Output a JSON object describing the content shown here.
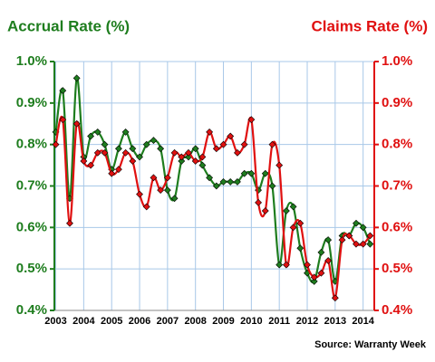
{
  "chart_data": {
    "type": "line",
    "title": "Accrual Rate (%)",
    "title2": "Claims Rate (%)",
    "source": "Source: Warranty Week",
    "x": [
      2003,
      2003.25,
      2003.5,
      2003.75,
      2004,
      2004.25,
      2004.5,
      2004.75,
      2005,
      2005.25,
      2005.5,
      2005.75,
      2006,
      2006.25,
      2006.5,
      2006.75,
      2007,
      2007.25,
      2007.5,
      2007.75,
      2008,
      2008.25,
      2008.5,
      2008.75,
      2009,
      2009.25,
      2009.5,
      2009.75,
      2010,
      2010.25,
      2010.5,
      2010.75,
      2011,
      2011.25,
      2011.5,
      2011.75,
      2012,
      2012.25,
      2012.5,
      2012.75,
      2013,
      2013.25,
      2013.5,
      2013.75,
      2014,
      2014.25
    ],
    "series": [
      {
        "name": "Accrual Rate",
        "color": "#1e7d1e",
        "values": [
          0.83,
          0.93,
          0.67,
          0.96,
          0.77,
          0.82,
          0.83,
          0.8,
          0.74,
          0.79,
          0.83,
          0.79,
          0.77,
          0.8,
          0.81,
          0.79,
          0.69,
          0.67,
          0.76,
          0.77,
          0.79,
          0.75,
          0.72,
          0.7,
          0.71,
          0.71,
          0.71,
          0.73,
          0.73,
          0.69,
          0.73,
          0.7,
          0.51,
          0.64,
          0.65,
          0.55,
          0.49,
          0.47,
          0.54,
          0.57,
          0.47,
          0.58,
          0.58,
          0.61,
          0.6,
          0.56
        ]
      },
      {
        "name": "Claims Rate",
        "color": "#e01010",
        "axis": "y2",
        "values": [
          0.8,
          0.86,
          0.61,
          0.85,
          0.76,
          0.75,
          0.78,
          0.78,
          0.73,
          0.74,
          0.78,
          0.76,
          0.68,
          0.65,
          0.72,
          0.69,
          0.72,
          0.78,
          0.77,
          0.78,
          0.76,
          0.77,
          0.83,
          0.79,
          0.8,
          0.82,
          0.78,
          0.8,
          0.86,
          0.66,
          0.64,
          0.8,
          0.75,
          0.51,
          0.6,
          0.61,
          0.51,
          0.48,
          0.49,
          0.52,
          0.43,
          0.57,
          0.58,
          0.56,
          0.56,
          0.58
        ]
      }
    ],
    "xlim": [
      2002.95,
      2014.4
    ],
    "xticks": [
      2003,
      2004,
      2005,
      2006,
      2007,
      2008,
      2009,
      2010,
      2011,
      2012,
      2013,
      2014
    ],
    "ylim": [
      0.4,
      1.0
    ],
    "yticks": [
      {
        "value": 0.4,
        "label": "0.4%"
      },
      {
        "value": 0.5,
        "label": "0.5%"
      },
      {
        "value": 0.6,
        "label": "0.6%"
      },
      {
        "value": 0.7,
        "label": "0.7%"
      },
      {
        "value": 0.8,
        "label": "0.8%"
      },
      {
        "value": 0.9,
        "label": "0.9%"
      },
      {
        "value": 1.0,
        "label": "1.0%"
      }
    ],
    "y2lim": [
      0.4,
      1.0
    ],
    "y2ticks": [
      {
        "value": 0.4,
        "label": "0.4%"
      },
      {
        "value": 0.5,
        "label": "0.5%"
      },
      {
        "value": 0.6,
        "label": "0.6%"
      },
      {
        "value": 0.7,
        "label": "0.7%"
      },
      {
        "value": 0.8,
        "label": "0.8%"
      },
      {
        "value": 0.9,
        "label": "0.9%"
      },
      {
        "value": 1.0,
        "label": "1.0%"
      }
    ],
    "grid": true
  }
}
